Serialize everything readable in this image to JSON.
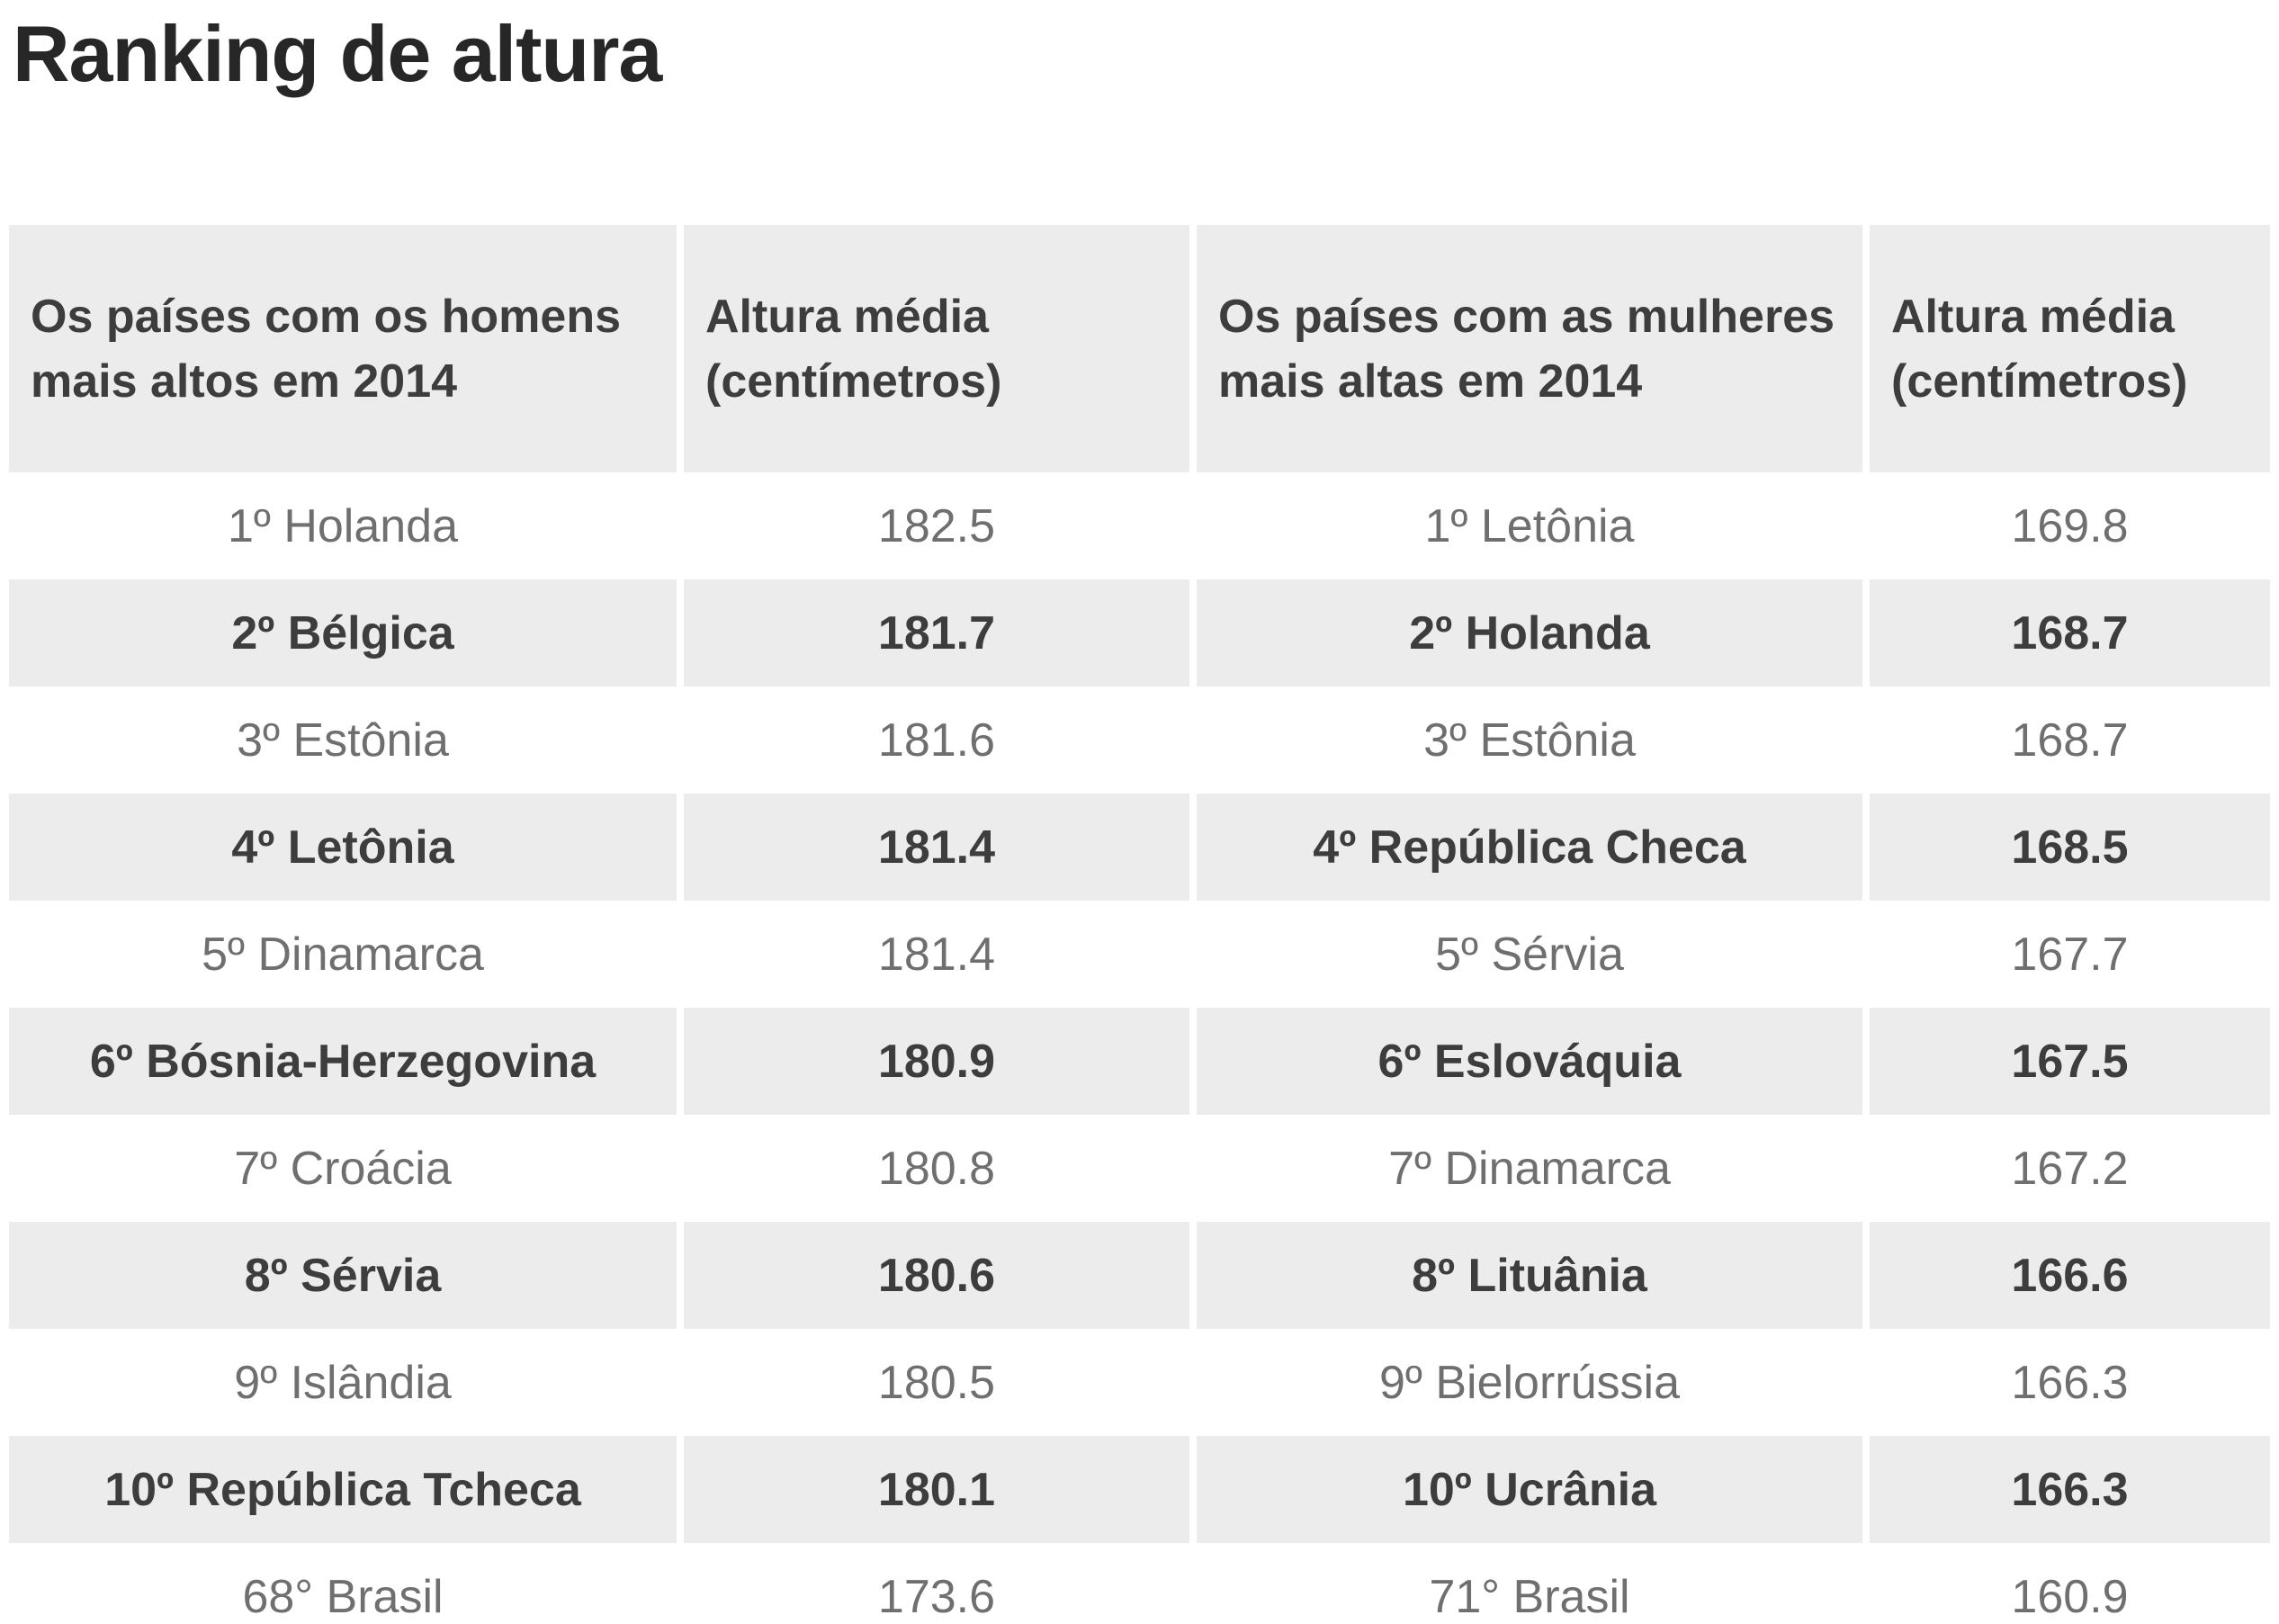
{
  "page": {
    "title": "Ranking de altura"
  },
  "colors": {
    "background": "#ffffff",
    "stripe_row_bg": "#ececec",
    "plain_row_bg": "#ffffff",
    "header_bg": "#ececec",
    "title_text": "#272727",
    "bold_text": "#3d3d3d",
    "regular_text": "#6f6f6f"
  },
  "table": {
    "headers": [
      "Os países com os homens mais altos em 2014",
      "Altura média (centímetros)",
      "Os países com as mulheres mais altas em 2014",
      "Altura média (centímetros)"
    ],
    "rows": [
      {
        "striped": false,
        "cells": [
          "1º Holanda",
          "182.5",
          "1º Letônia",
          "169.8"
        ]
      },
      {
        "striped": true,
        "cells": [
          "2º Bélgica",
          "181.7",
          "2º Holanda",
          "168.7"
        ]
      },
      {
        "striped": false,
        "cells": [
          "3º Estônia",
          "181.6",
          "3º Estônia",
          "168.7"
        ]
      },
      {
        "striped": true,
        "cells": [
          "4º Letônia",
          "181.4",
          "4º República Checa",
          "168.5"
        ]
      },
      {
        "striped": false,
        "cells": [
          "5º Dinamarca",
          "181.4",
          "5º Sérvia",
          "167.7"
        ]
      },
      {
        "striped": true,
        "cells": [
          "6º Bósnia-Herzegovina",
          "180.9",
          "6º Eslováquia",
          "167.5"
        ]
      },
      {
        "striped": false,
        "cells": [
          "7º Croácia",
          "180.8",
          "7º Dinamarca",
          "167.2"
        ]
      },
      {
        "striped": true,
        "cells": [
          "8º Sérvia",
          "180.6",
          "8º Lituânia",
          "166.6"
        ]
      },
      {
        "striped": false,
        "cells": [
          "9º Islândia",
          "180.5",
          "9º Bielorrússia",
          "166.3"
        ]
      },
      {
        "striped": true,
        "cells": [
          "10º República Tcheca",
          "180.1",
          "10º Ucrânia",
          "166.3"
        ]
      },
      {
        "striped": false,
        "cells": [
          "68° Brasil",
          "173.6",
          "71° Brasil",
          "160.9"
        ]
      }
    ]
  },
  "chart_data": {
    "type": "table",
    "title": "Ranking de altura",
    "columns": [
      "Os países com os homens mais altos em 2014",
      "Altura média (centímetros)",
      "Os países com as mulheres mais altas em 2014",
      "Altura média (centímetros)"
    ],
    "rows": [
      [
        "1º Holanda",
        182.5,
        "1º Letônia",
        169.8
      ],
      [
        "2º Bélgica",
        181.7,
        "2º Holanda",
        168.7
      ],
      [
        "3º Estônia",
        181.6,
        "3º Estônia",
        168.7
      ],
      [
        "4º Letônia",
        181.4,
        "4º República Checa",
        168.5
      ],
      [
        "5º Dinamarca",
        181.4,
        "5º Sérvia",
        167.7
      ],
      [
        "6º Bósnia-Herzegovina",
        180.9,
        "6º Eslováquia",
        167.5
      ],
      [
        "7º Croácia",
        180.8,
        "7º Dinamarca",
        167.2
      ],
      [
        "8º Sérvia",
        180.6,
        "8º Lituânia",
        166.6
      ],
      [
        "9º Islândia",
        180.5,
        "9º Bielorrússia",
        166.3
      ],
      [
        "10º República Tcheca",
        180.1,
        "10º Ucrânia",
        166.3
      ],
      [
        "68° Brasil",
        173.6,
        "71° Brasil",
        160.9
      ]
    ],
    "notes": "Striped (gray, bold) rows alternate with plain (white, regular) rows; last row shows Brazil's position (68th men / 71st women)."
  }
}
